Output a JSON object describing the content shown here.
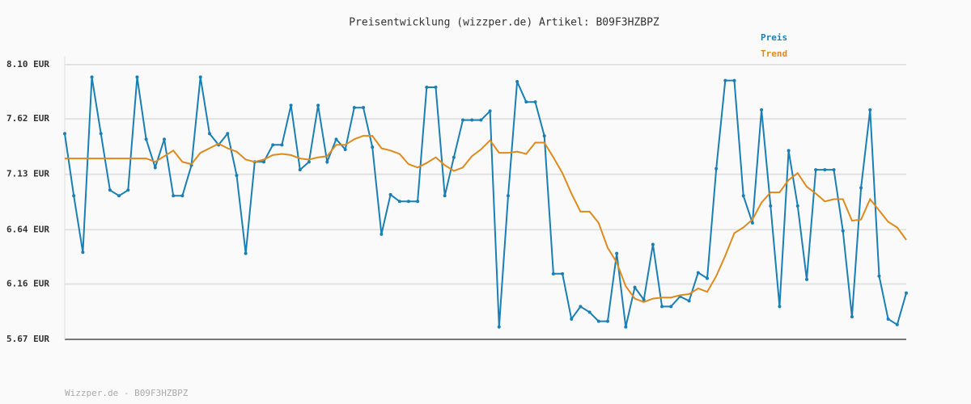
{
  "chart_data": {
    "type": "line",
    "title": "Preisentwicklung (wizzper.de) Artikel: B09F3HZBPZ",
    "footer": "Wizzper.de - B09F3HZBPZ",
    "ylim": [
      5.67,
      8.1
    ],
    "yticks": [
      {
        "value": 5.67,
        "label": "5.67 EUR"
      },
      {
        "value": 6.16,
        "label": "6.16 EUR"
      },
      {
        "value": 6.64,
        "label": "6.64 EUR"
      },
      {
        "value": 7.13,
        "label": "7.13 EUR"
      },
      {
        "value": 7.62,
        "label": "7.62 EUR"
      },
      {
        "value": 8.1,
        "label": "8.10 EUR"
      }
    ],
    "grid": true,
    "series": [
      {
        "name": "Preis",
        "color": "#1a7fb5",
        "markers": true,
        "values": [
          7.49,
          6.94,
          6.44,
          7.99,
          7.49,
          6.99,
          6.94,
          6.99,
          7.99,
          7.44,
          7.19,
          7.44,
          6.94,
          6.94,
          7.21,
          7.99,
          7.49,
          7.39,
          7.49,
          7.12,
          6.43,
          7.24,
          7.24,
          7.39,
          7.39,
          7.74,
          7.17,
          7.24,
          7.74,
          7.24,
          7.44,
          7.35,
          7.72,
          7.72,
          7.37,
          6.6,
          6.95,
          6.89,
          6.89,
          6.89,
          7.9,
          7.9,
          6.94,
          7.28,
          7.61,
          7.61,
          7.61,
          7.69,
          5.78,
          6.94,
          7.95,
          7.77,
          7.77,
          7.47,
          6.25,
          6.25,
          5.85,
          5.96,
          5.91,
          5.83,
          5.83,
          6.43,
          5.78,
          6.13,
          6.02,
          6.51,
          5.96,
          5.96,
          6.05,
          6.01,
          6.26,
          6.21,
          7.18,
          7.96,
          7.96,
          6.94,
          6.7,
          7.7,
          6.85,
          5.96,
          7.34,
          6.85,
          6.2,
          7.17,
          7.17,
          7.17,
          6.63,
          5.87,
          7.01,
          7.7,
          6.23,
          5.85,
          5.8,
          6.08
        ]
      },
      {
        "name": "Trend",
        "color": "#e08a1e",
        "markers": false,
        "values": [
          7.27,
          7.27,
          7.27,
          7.27,
          7.27,
          7.27,
          7.27,
          7.27,
          7.27,
          7.27,
          7.24,
          7.29,
          7.34,
          7.24,
          7.22,
          7.32,
          7.36,
          7.4,
          7.36,
          7.33,
          7.26,
          7.24,
          7.26,
          7.3,
          7.31,
          7.3,
          7.27,
          7.26,
          7.28,
          7.29,
          7.39,
          7.39,
          7.44,
          7.47,
          7.47,
          7.36,
          7.34,
          7.31,
          7.22,
          7.19,
          7.23,
          7.28,
          7.21,
          7.16,
          7.19,
          7.29,
          7.35,
          7.43,
          7.32,
          7.32,
          7.33,
          7.31,
          7.41,
          7.41,
          7.28,
          7.14,
          6.96,
          6.8,
          6.8,
          6.7,
          6.48,
          6.35,
          6.14,
          6.03,
          6.0,
          6.03,
          6.04,
          6.04,
          6.06,
          6.07,
          6.12,
          6.09,
          6.23,
          6.41,
          6.61,
          6.66,
          6.73,
          6.88,
          6.97,
          6.97,
          7.08,
          7.14,
          7.02,
          6.96,
          6.89,
          6.91,
          6.91,
          6.72,
          6.73,
          6.91,
          6.81,
          6.71,
          6.66,
          6.55
        ]
      }
    ]
  }
}
